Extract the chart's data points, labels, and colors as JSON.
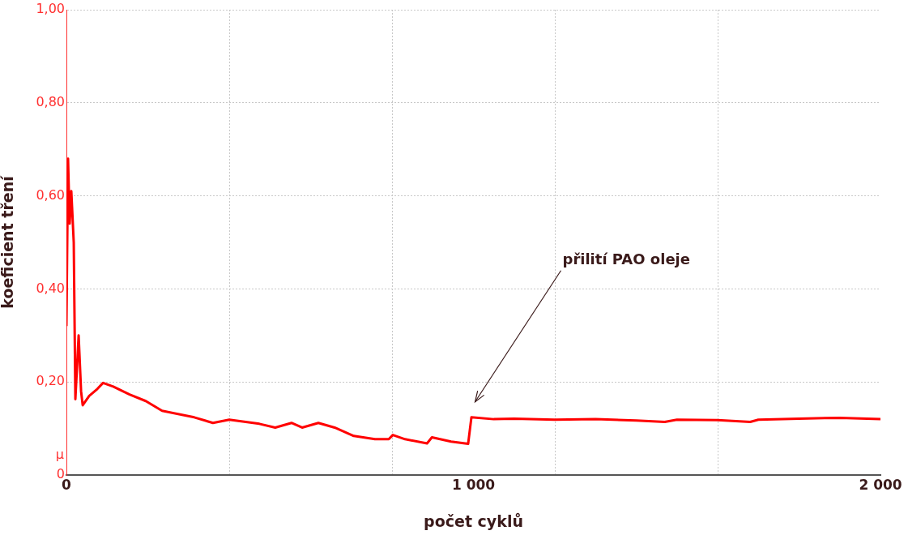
{
  "chart_data": {
    "type": "line",
    "xlabel": "počet cyklů",
    "ylabel": "koeficient tření",
    "x": [
      0,
      4,
      8,
      12,
      18,
      22,
      30,
      36,
      40,
      56,
      76,
      90,
      115,
      155,
      195,
      235,
      314,
      360,
      400,
      474,
      513,
      553,
      579,
      619,
      659,
      706,
      758,
      792,
      802,
      832,
      886,
      898,
      945,
      987,
      995,
      1050,
      1100,
      1200,
      1300,
      1400,
      1470,
      1500,
      1600,
      1680,
      1700,
      1800,
      1900,
      2000
    ],
    "series": [
      {
        "color": "#ff0000",
        "values": [
          0.32,
          0.68,
          0.54,
          0.61,
          0.5,
          0.163,
          0.3,
          0.18,
          0.15,
          0.17,
          0.185,
          0.198,
          0.19,
          0.173,
          0.159,
          0.138,
          0.124,
          0.112,
          0.119,
          0.11,
          0.102,
          0.112,
          0.102,
          0.112,
          0.102,
          0.084,
          0.077,
          0.077,
          0.086,
          0.077,
          0.068,
          0.081,
          0.072,
          0.067,
          0.124,
          0.12,
          0.121,
          0.119,
          0.12,
          0.117,
          0.114,
          0.119,
          0.118,
          0.114,
          0.119,
          0.121,
          0.123,
          0.12
        ]
      }
    ],
    "xlim": [
      0,
      2000
    ],
    "xticks": [
      0,
      {
        "value": 400,
        "label": null
      },
      {
        "value": 800,
        "label": null
      },
      {
        "value": 1000,
        "label": "1 000"
      },
      {
        "value": 1200,
        "label": null
      },
      {
        "value": 1600,
        "label": null
      },
      {
        "value": 2000,
        "label": "2 000"
      }
    ],
    "ylim": [
      0,
      1
    ],
    "yticks": [
      0,
      {
        "value": 0.2,
        "label": "0,20"
      },
      {
        "value": 0.4,
        "label": "0,40"
      },
      {
        "value": 0.6,
        "label": "0,60"
      },
      {
        "value": 0.8,
        "label": "0,80"
      },
      {
        "value": 1,
        "label": "1,00"
      }
    ],
    "grid": true,
    "marker": "none",
    "line_style": "solid",
    "legend": false,
    "annotations": [
      "μ",
      "přilití PAO oleje"
    ]
  }
}
